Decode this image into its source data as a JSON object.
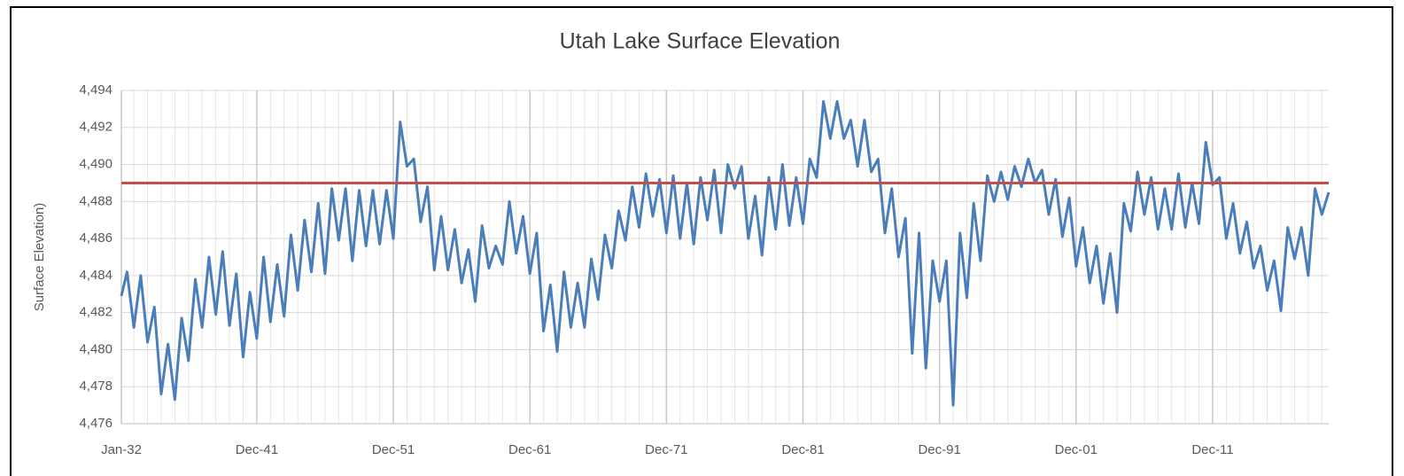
{
  "chart_data": {
    "type": "line",
    "title": "Utah Lake Surface Elevation",
    "y_label": "Surface Elevation)",
    "x": [
      "Jan-32",
      "Jun-32",
      "Dec-32",
      "Jun-33",
      "Dec-33",
      "Jun-34",
      "Dec-34",
      "Jun-35",
      "Dec-35",
      "Jun-36",
      "Dec-36",
      "Jun-37",
      "Dec-37",
      "Jun-38",
      "Dec-38",
      "Jun-39",
      "Dec-39",
      "Jun-40",
      "Dec-40",
      "Jun-41",
      "Dec-41",
      "Jun-42",
      "Dec-42",
      "Jun-43",
      "Dec-43",
      "Jun-44",
      "Dec-44",
      "Jun-45",
      "Dec-45",
      "Jun-46",
      "Dec-46",
      "Jun-47",
      "Dec-47",
      "Jun-48",
      "Dec-48",
      "Jun-49",
      "Dec-49",
      "Jun-50",
      "Dec-50",
      "Jun-51",
      "Dec-51",
      "Jun-52",
      "Dec-52",
      "Jun-53",
      "Dec-53",
      "Jun-54",
      "Dec-54",
      "Jun-55",
      "Dec-55",
      "Jun-56",
      "Dec-56",
      "Jun-57",
      "Dec-57",
      "Jun-58",
      "Dec-58",
      "Jun-59",
      "Dec-59",
      "Jun-60",
      "Dec-60",
      "Jun-61",
      "Dec-61",
      "Jun-62",
      "Dec-62",
      "Jun-63",
      "Dec-63",
      "Jun-64",
      "Dec-64",
      "Jun-65",
      "Dec-65",
      "Jun-66",
      "Dec-66",
      "Jun-67",
      "Dec-67",
      "Jun-68",
      "Dec-68",
      "Jun-69",
      "Dec-69",
      "Jun-70",
      "Dec-70",
      "Jun-71",
      "Dec-71",
      "Jun-72",
      "Dec-72",
      "Jun-73",
      "Dec-73",
      "Jun-74",
      "Dec-74",
      "Jun-75",
      "Dec-75",
      "Jun-76",
      "Dec-76",
      "Jun-77",
      "Dec-77",
      "Jun-78",
      "Dec-78",
      "Jun-79",
      "Dec-79",
      "Jun-80",
      "Dec-80",
      "Jun-81",
      "Dec-81",
      "Jun-82",
      "Dec-82",
      "Jun-83",
      "Dec-83",
      "Jun-84",
      "Dec-84",
      "Jun-85",
      "Dec-85",
      "Jun-86",
      "Dec-86",
      "Jun-87",
      "Dec-87",
      "Jun-88",
      "Dec-88",
      "Jun-89",
      "Dec-89",
      "Jun-90",
      "Dec-90",
      "Jun-91",
      "Dec-91",
      "Jun-92",
      "Dec-92",
      "Jun-93",
      "Dec-93",
      "Jun-94",
      "Dec-94",
      "Jun-95",
      "Dec-95",
      "Jun-96",
      "Dec-96",
      "Jun-97",
      "Dec-97",
      "Jun-98",
      "Dec-98",
      "Jun-99",
      "Dec-99",
      "Jun-00",
      "Dec-00",
      "Jun-01",
      "Dec-01",
      "Jun-02",
      "Dec-02",
      "Jun-03",
      "Dec-03",
      "Jun-04",
      "Dec-04",
      "Jun-05",
      "Dec-05",
      "Jun-06",
      "Dec-06",
      "Jun-07",
      "Dec-07",
      "Jun-08",
      "Dec-08",
      "Jun-09",
      "Dec-09",
      "Jun-10",
      "Dec-10",
      "Jun-11",
      "Dec-11",
      "Jun-12",
      "Dec-12",
      "Jun-13",
      "Dec-13",
      "Jun-14",
      "Dec-14",
      "Jun-15",
      "Dec-15",
      "Jun-16",
      "Dec-16",
      "Jun-17",
      "Dec-17",
      "Jun-18",
      "Dec-18",
      "Jun-19",
      "Dec-19",
      "Jun-20"
    ],
    "series": [
      {
        "name": "Surface Elevation",
        "color": "#4a7ebb",
        "values": [
          4482.9,
          4484.2,
          4481.2,
          4484.0,
          4480.4,
          4482.3,
          4477.6,
          4480.3,
          4477.3,
          4481.7,
          4479.4,
          4483.8,
          4481.2,
          4485.0,
          4481.9,
          4485.3,
          4481.3,
          4484.1,
          4479.6,
          4483.1,
          4480.6,
          4485.0,
          4481.5,
          4484.6,
          4481.8,
          4486.2,
          4483.2,
          4487.0,
          4484.2,
          4487.9,
          4484.1,
          4488.7,
          4485.9,
          4488.7,
          4484.8,
          4488.6,
          4485.6,
          4488.6,
          4485.7,
          4488.6,
          4486.0,
          4492.3,
          4489.9,
          4490.3,
          4486.9,
          4488.8,
          4484.3,
          4487.2,
          4484.3,
          4486.5,
          4483.6,
          4485.4,
          4482.6,
          4486.7,
          4484.4,
          4485.6,
          4484.6,
          4488.0,
          4485.2,
          4487.2,
          4484.1,
          4486.3,
          4481.0,
          4483.5,
          4479.9,
          4484.2,
          4481.2,
          4483.6,
          4481.2,
          4484.9,
          4482.7,
          4486.2,
          4484.4,
          4487.5,
          4485.9,
          4488.8,
          4486.6,
          4489.5,
          4487.2,
          4489.2,
          4486.3,
          4489.4,
          4486.0,
          4489.0,
          4485.7,
          4489.3,
          4487.0,
          4489.7,
          4486.3,
          4490.0,
          4488.7,
          4489.9,
          4486.0,
          4488.3,
          4485.1,
          4489.3,
          4486.5,
          4490.0,
          4486.7,
          4489.3,
          4486.8,
          4490.3,
          4489.3,
          4493.4,
          4491.4,
          4493.4,
          4491.4,
          4492.4,
          4489.9,
          4492.4,
          4489.6,
          4490.3,
          4486.3,
          4488.7,
          4485.0,
          4487.1,
          4479.8,
          4486.3,
          4479.0,
          4484.8,
          4482.6,
          4484.8,
          4477.0,
          4486.3,
          4482.8,
          4487.9,
          4484.8,
          4489.4,
          4488.0,
          4489.6,
          4488.1,
          4489.9,
          4488.8,
          4490.3,
          4489.0,
          4489.7,
          4487.3,
          4489.2,
          4486.1,
          4488.2,
          4484.5,
          4486.6,
          4483.6,
          4485.6,
          4482.5,
          4485.2,
          4482.0,
          4487.9,
          4486.4,
          4489.6,
          4487.3,
          4489.3,
          4486.5,
          4488.7,
          4486.5,
          4489.5,
          4486.6,
          4489.0,
          4486.8,
          4491.2,
          4488.9,
          4489.3,
          4486.0,
          4487.9,
          4485.2,
          4486.9,
          4484.4,
          4485.6,
          4483.2,
          4484.8,
          4482.1,
          4486.6,
          4484.9,
          4486.6,
          4484.0,
          4488.7,
          4487.3,
          4488.5
        ]
      }
    ],
    "reference_line": {
      "value": 4489.0,
      "color": "#c0504d"
    },
    "ylim": [
      4476,
      4494
    ],
    "yticks": [
      {
        "value": 4476,
        "label": "4,476"
      },
      {
        "value": 4478,
        "label": "4,478"
      },
      {
        "value": 4480,
        "label": "4,480"
      },
      {
        "value": 4482,
        "label": "4,482"
      },
      {
        "value": 4484,
        "label": "4,484"
      },
      {
        "value": 4486,
        "label": "4,486"
      },
      {
        "value": 4488,
        "label": "4,488"
      },
      {
        "value": 4490,
        "label": "4,490"
      },
      {
        "value": 4492,
        "label": "4,492"
      },
      {
        "value": 4494,
        "label": "4,494"
      }
    ],
    "xticks": [
      "Jan-32",
      "Dec-41",
      "Dec-51",
      "Dec-61",
      "Dec-71",
      "Dec-81",
      "Dec-91",
      "Dec-01",
      "Dec-11"
    ],
    "grid": true
  }
}
